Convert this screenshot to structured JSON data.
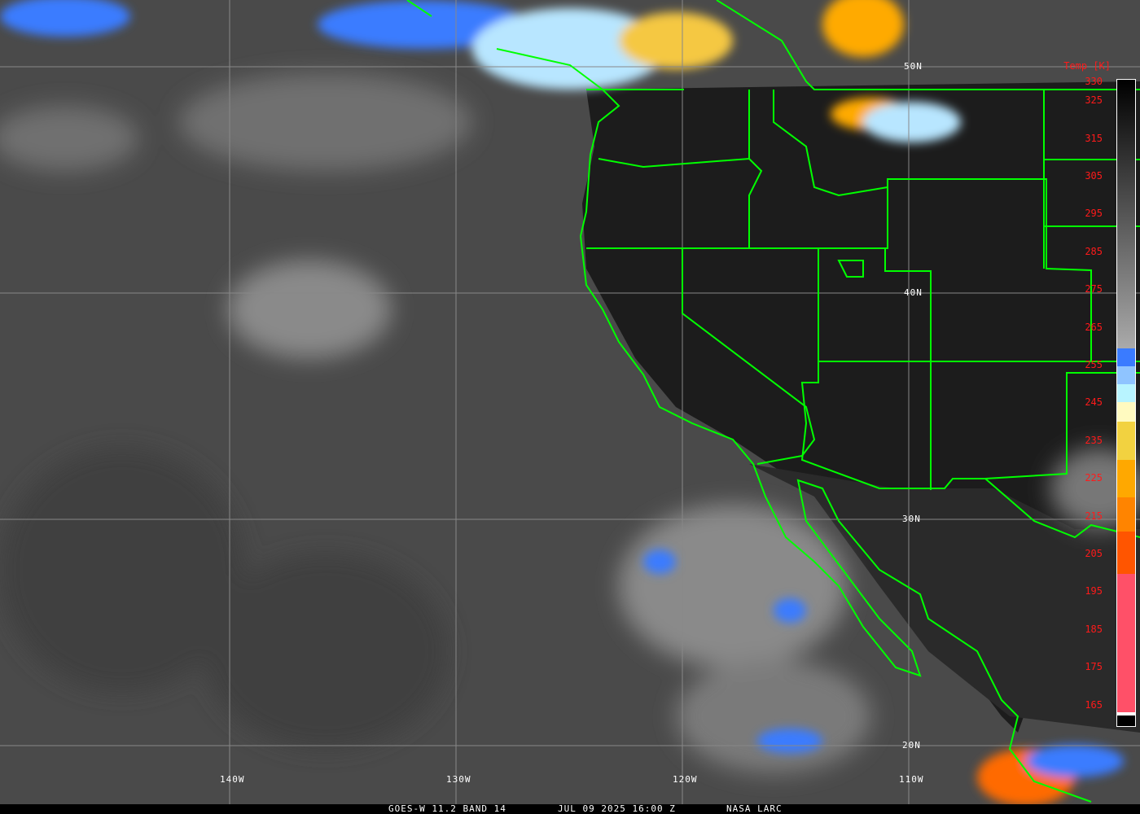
{
  "caption": {
    "satellite_band": "GOES-W 11.2 BAND 14",
    "datetime": "JUL 09 2025 16:00 Z",
    "credit": "NASA LARC"
  },
  "grid": {
    "latitude_labels": [
      "50N",
      "40N",
      "30N",
      "20N"
    ],
    "longitude_labels": [
      "140W",
      "130W",
      "120W",
      "110W"
    ]
  },
  "colorbar": {
    "title": "Temp [K]",
    "ticks": [
      "330",
      "325",
      "315",
      "305",
      "295",
      "285",
      "275",
      "265",
      "255",
      "245",
      "235",
      "225",
      "215",
      "205",
      "195",
      "185",
      "175",
      "165"
    ]
  },
  "colors": {
    "borders": "#00ff00",
    "gridlines": "#888888",
    "colorbar_labels": "#ff1a1a",
    "ocean_ir": "#4a4a4a",
    "land_ir": "#1a1a1a"
  }
}
